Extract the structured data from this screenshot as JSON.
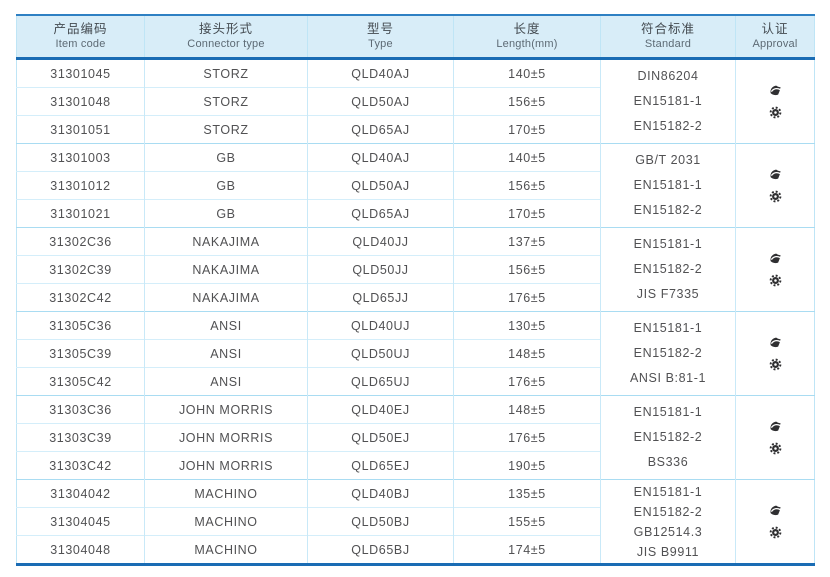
{
  "colors": {
    "accent_blue": "#1a6cb4",
    "header_top_blue": "#2e80c3",
    "header_bg": "#d8edf8",
    "grid_light_blue": "#c9e9f8",
    "grid_group_blue": "#a9dcf2",
    "body_text": "#515153",
    "icon_dark": "#2f2f31"
  },
  "table": {
    "columns": [
      {
        "zh": "产品编码",
        "en": "Item code"
      },
      {
        "zh": "接头形式",
        "en": "Connector type"
      },
      {
        "zh": "型号",
        "en": "Type"
      },
      {
        "zh": "长度",
        "en": "Length(mm)"
      },
      {
        "zh": "符合标准",
        "en": "Standard"
      },
      {
        "zh": "认证",
        "en": "Approval"
      }
    ],
    "approval_icons": [
      "swoosh-cert-icon",
      "gear-cert-icon"
    ],
    "groups": [
      {
        "rows": [
          {
            "code": "31301045",
            "connector": "STORZ",
            "type": "QLD40AJ",
            "length": "140±5"
          },
          {
            "code": "31301048",
            "connector": "STORZ",
            "type": "QLD50AJ",
            "length": "156±5"
          },
          {
            "code": "31301051",
            "connector": "STORZ",
            "type": "QLD65AJ",
            "length": "170±5"
          }
        ],
        "standards": [
          "DIN86204",
          "EN15181-1",
          "EN15182-2"
        ]
      },
      {
        "rows": [
          {
            "code": "31301003",
            "connector": "GB",
            "type": "QLD40AJ",
            "length": "140±5"
          },
          {
            "code": "31301012",
            "connector": "GB",
            "type": "QLD50AJ",
            "length": "156±5"
          },
          {
            "code": "31301021",
            "connector": "GB",
            "type": "QLD65AJ",
            "length": "170±5"
          }
        ],
        "standards": [
          "GB/T 2031",
          "EN15181-1",
          "EN15182-2"
        ]
      },
      {
        "rows": [
          {
            "code": "31302C36",
            "connector": "NAKAJIMA",
            "type": "QLD40JJ",
            "length": "137±5"
          },
          {
            "code": "31302C39",
            "connector": "NAKAJIMA",
            "type": "QLD50JJ",
            "length": "156±5"
          },
          {
            "code": "31302C42",
            "connector": "NAKAJIMA",
            "type": "QLD65JJ",
            "length": "176±5"
          }
        ],
        "standards": [
          "EN15181-1",
          "EN15182-2",
          "JIS F7335"
        ]
      },
      {
        "rows": [
          {
            "code": "31305C36",
            "connector": "ANSI",
            "type": "QLD40UJ",
            "length": "130±5"
          },
          {
            "code": "31305C39",
            "connector": "ANSI",
            "type": "QLD50UJ",
            "length": "148±5"
          },
          {
            "code": "31305C42",
            "connector": "ANSI",
            "type": "QLD65UJ",
            "length": "176±5"
          }
        ],
        "standards": [
          "EN15181-1",
          "EN15182-2",
          "ANSI B:81-1"
        ]
      },
      {
        "rows": [
          {
            "code": "31303C36",
            "connector": "JOHN MORRIS",
            "type": "QLD40EJ",
            "length": "148±5"
          },
          {
            "code": "31303C39",
            "connector": "JOHN MORRIS",
            "type": "QLD50EJ",
            "length": "176±5"
          },
          {
            "code": "31303C42",
            "connector": "JOHN MORRIS",
            "type": "QLD65EJ",
            "length": "190±5"
          }
        ],
        "standards": [
          "EN15181-1",
          "EN15182-2",
          "BS336"
        ]
      },
      {
        "rows": [
          {
            "code": "31304042",
            "connector": "MACHINO",
            "type": "QLD40BJ",
            "length": "135±5"
          },
          {
            "code": "31304045",
            "connector": "MACHINO",
            "type": "QLD50BJ",
            "length": "155±5"
          },
          {
            "code": "31304048",
            "connector": "MACHINO",
            "type": "QLD65BJ",
            "length": "174±5"
          }
        ],
        "standards": [
          "EN15181-1",
          "EN15182-2",
          "GB12514.3",
          "JIS B9911"
        ]
      }
    ]
  }
}
